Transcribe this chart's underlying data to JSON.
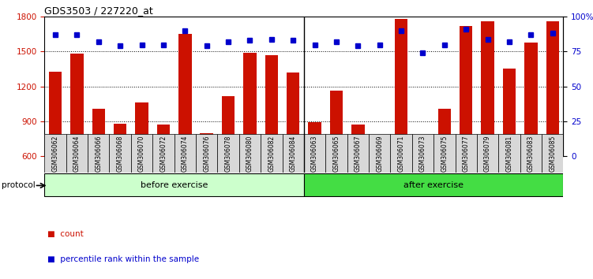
{
  "title": "GDS3503 / 227220_at",
  "categories": [
    "GSM306062",
    "GSM306064",
    "GSM306066",
    "GSM306068",
    "GSM306070",
    "GSM306072",
    "GSM306074",
    "GSM306076",
    "GSM306078",
    "GSM306080",
    "GSM306082",
    "GSM306084",
    "GSM306063",
    "GSM306065",
    "GSM306067",
    "GSM306069",
    "GSM306071",
    "GSM306073",
    "GSM306075",
    "GSM306077",
    "GSM306079",
    "GSM306081",
    "GSM306083",
    "GSM306085"
  ],
  "bar_values": [
    1330,
    1480,
    1010,
    880,
    1060,
    870,
    1650,
    800,
    1120,
    1490,
    1470,
    1320,
    895,
    1165,
    870,
    765,
    1780,
    730,
    1010,
    1720,
    1760,
    1355,
    1580,
    1760
  ],
  "percentile_values": [
    87,
    87,
    82,
    79,
    80,
    80,
    90,
    79,
    82,
    83,
    84,
    83,
    80,
    82,
    79,
    80,
    90,
    74,
    80,
    91,
    84,
    82,
    87,
    88
  ],
  "bar_color": "#cc1100",
  "dot_color": "#0000cc",
  "ylim_left": [
    600,
    1800
  ],
  "ylim_right": [
    0,
    100
  ],
  "yticks_left": [
    600,
    900,
    1200,
    1500,
    1800
  ],
  "yticks_right": [
    0,
    25,
    50,
    75,
    100
  ],
  "ytick_labels_right": [
    "0",
    "25",
    "50",
    "75",
    "100%"
  ],
  "before_exercise_count": 12,
  "after_exercise_count": 12,
  "protocol_label": "protocol",
  "before_label": "before exercise",
  "after_label": "after exercise",
  "legend_count_label": "count",
  "legend_pct_label": "percentile rank within the sample",
  "bg_color": "#ffffff",
  "plot_bg": "#ffffff",
  "before_color": "#ccffcc",
  "after_color": "#44dd44",
  "bar_width": 0.6,
  "tick_bg_color": "#d8d8d8"
}
